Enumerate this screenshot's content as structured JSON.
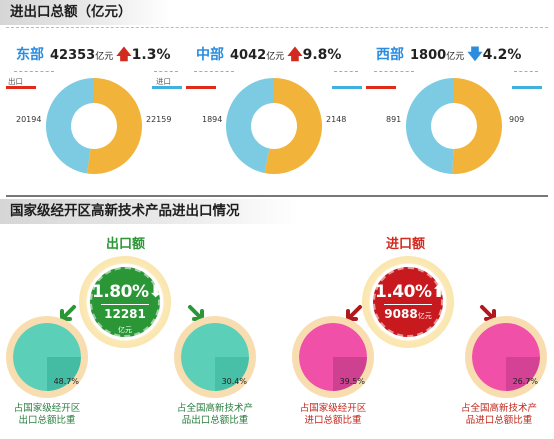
{
  "header": {
    "title": "进出口总额（亿元）",
    "section2_title": "国家级经开区高新技术产品进出口情况"
  },
  "regions": [
    {
      "name": "东部",
      "total": "42353",
      "unit": "亿元",
      "direction": "up",
      "rate": "1.3%",
      "export": "20194",
      "import": "22159",
      "export_label": "出口",
      "import_label": "进口"
    },
    {
      "name": "中部",
      "total": "4042",
      "unit": "亿元",
      "direction": "up",
      "rate": "9.8%",
      "export": "1894",
      "import": "2148",
      "export_label": "",
      "import_label": ""
    },
    {
      "name": "西部",
      "total": "1800",
      "unit": "亿元",
      "direction": "down",
      "rate": "4.2%",
      "export": "891",
      "import": "909",
      "export_label": "",
      "import_label": ""
    }
  ],
  "export_section": {
    "title": "出口额",
    "rate": "1.80%",
    "amount": "12281",
    "unit": "亿元",
    "left_share": "48.7%",
    "left_caption_1": "占国家级经开区",
    "left_caption_2": "出口总额比重",
    "right_share": "30.4%",
    "right_caption_1": "占全国高新技术产",
    "right_caption_2": "品出口总额比重"
  },
  "import_section": {
    "title": "进口额",
    "rate": "1.40%",
    "amount": "9088",
    "unit": "亿元",
    "left_share": "39.5%",
    "left_caption_1": "占国家级经开区",
    "left_caption_2": "进口总额比重",
    "right_share": "26.7%",
    "right_caption_1": "占全国高新技术产",
    "right_caption_2": "品进口总额比重"
  },
  "colors": {
    "export": "#7ccbe2",
    "import": "#f2b33a",
    "green": "#2a9636",
    "red": "#c8191e",
    "teal": "#5ccfb8",
    "pink": "#f050a8"
  },
  "chart_data": [
    {
      "type": "pie",
      "title": "东部",
      "categories": [
        "出口",
        "进口"
      ],
      "values": [
        20194,
        22159
      ]
    },
    {
      "type": "pie",
      "title": "中部",
      "categories": [
        "出口",
        "进口"
      ],
      "values": [
        1894,
        2148
      ]
    },
    {
      "type": "pie",
      "title": "西部",
      "categories": [
        "出口",
        "进口"
      ],
      "values": [
        891,
        909
      ]
    },
    {
      "type": "pie",
      "categories": [
        "占国家级经开区出口总额比重"
      ],
      "values": [
        48.7
      ]
    },
    {
      "type": "pie",
      "categories": [
        "占全国高新技术产品出口总额比重"
      ],
      "values": [
        30.4
      ]
    },
    {
      "type": "pie",
      "categories": [
        "占国家级经开区进口总额比重"
      ],
      "values": [
        39.5
      ]
    },
    {
      "type": "pie",
      "categories": [
        "占全国高新技术产品进口总额比重"
      ],
      "values": [
        26.7
      ]
    }
  ]
}
